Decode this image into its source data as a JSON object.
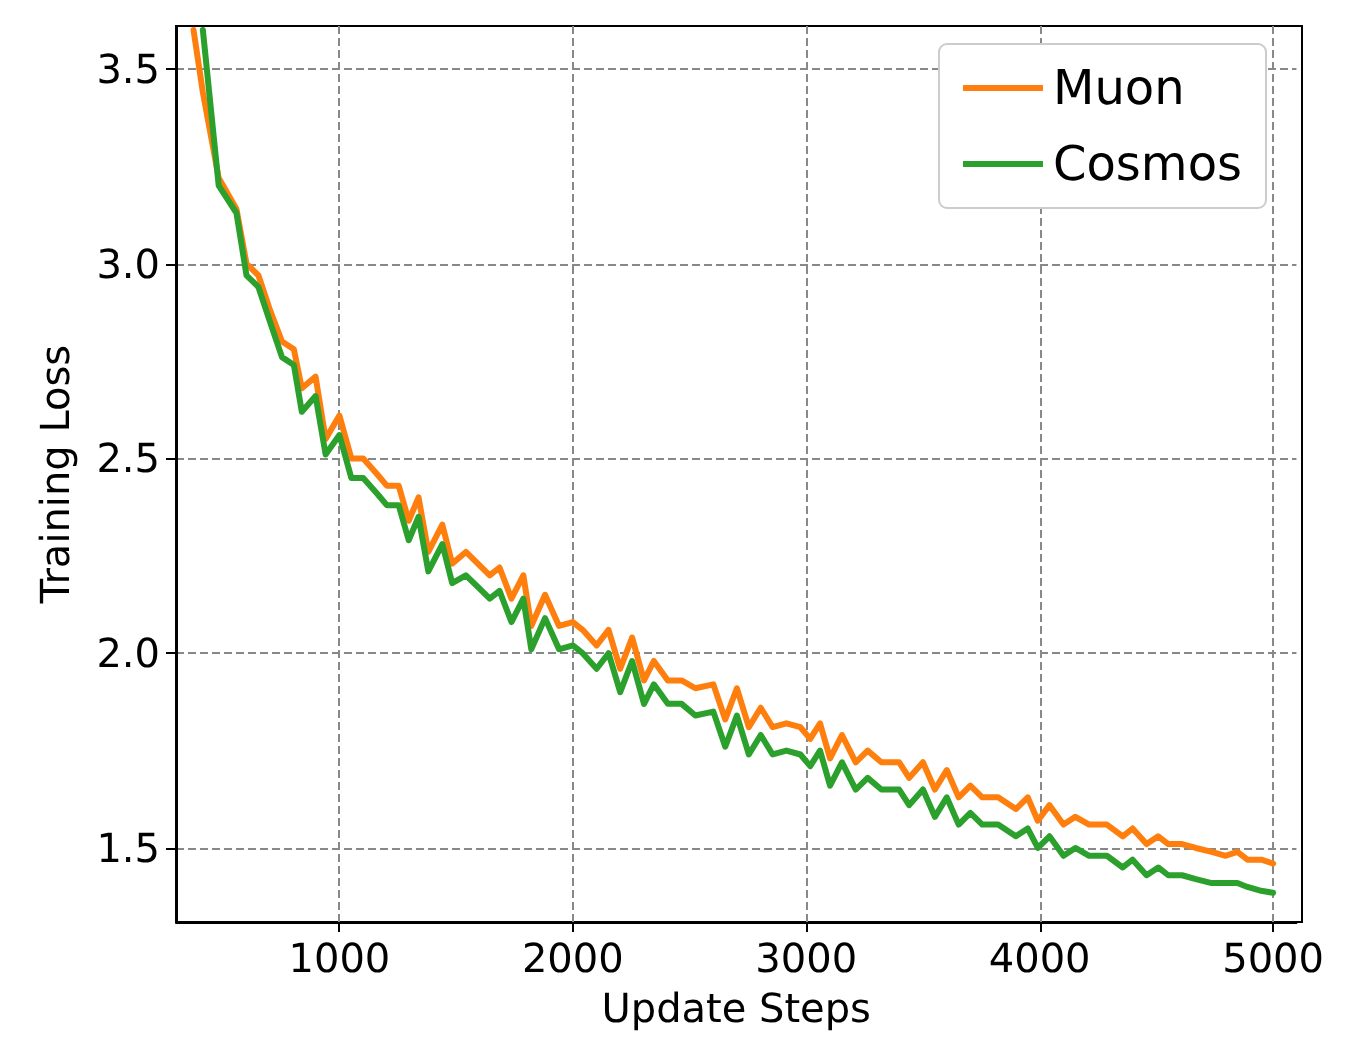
{
  "chart_data": {
    "type": "line",
    "xlabel": "Update Steps",
    "ylabel": "Training Loss",
    "x": [
      375,
      415,
      483,
      559,
      602,
      653,
      703,
      754,
      805,
      839,
      898,
      941,
      1000,
      1051,
      1102,
      1161,
      1203,
      1254,
      1297,
      1339,
      1381,
      1441,
      1483,
      1542,
      1593,
      1644,
      1686,
      1737,
      1788,
      1822,
      1881,
      1941,
      2000,
      2042,
      2102,
      2153,
      2203,
      2254,
      2305,
      2347,
      2407,
      2466,
      2525,
      2602,
      2653,
      2703,
      2754,
      2805,
      2856,
      2915,
      2975,
      3017,
      3059,
      3102,
      3153,
      3212,
      3263,
      3322,
      3398,
      3441,
      3500,
      3551,
      3602,
      3653,
      3703,
      3754,
      3822,
      3898,
      3949,
      3992,
      4042,
      4102,
      4153,
      4212,
      4288,
      4356,
      4398,
      4458,
      4508,
      4551,
      4610,
      4669,
      4737,
      4797,
      4847,
      4890,
      4949,
      5000
    ],
    "series": [
      {
        "name": "Muon",
        "color": "#ff7f0e",
        "values": [
          3.6,
          3.44,
          3.22,
          3.14,
          3.0,
          2.97,
          2.88,
          2.8,
          2.78,
          2.68,
          2.71,
          2.55,
          2.61,
          2.5,
          2.5,
          2.46,
          2.43,
          2.43,
          2.34,
          2.4,
          2.26,
          2.33,
          2.23,
          2.26,
          2.23,
          2.2,
          2.22,
          2.14,
          2.2,
          2.07,
          2.15,
          2.07,
          2.08,
          2.06,
          2.02,
          2.06,
          1.96,
          2.04,
          1.93,
          1.98,
          1.93,
          1.93,
          1.91,
          1.92,
          1.83,
          1.91,
          1.81,
          1.86,
          1.81,
          1.82,
          1.81,
          1.78,
          1.82,
          1.73,
          1.79,
          1.72,
          1.75,
          1.72,
          1.72,
          1.68,
          1.72,
          1.65,
          1.7,
          1.63,
          1.66,
          1.63,
          1.63,
          1.6,
          1.63,
          1.57,
          1.61,
          1.56,
          1.58,
          1.56,
          1.56,
          1.53,
          1.55,
          1.51,
          1.53,
          1.51,
          1.51,
          1.5,
          1.49,
          1.48,
          1.49,
          1.47,
          1.47,
          1.46
        ]
      },
      {
        "name": "Cosmos",
        "color": "#2ca02c",
        "values": [
          null,
          3.6,
          3.2,
          3.13,
          2.97,
          2.94,
          2.85,
          2.76,
          2.74,
          2.62,
          2.66,
          2.51,
          2.56,
          2.45,
          2.45,
          2.41,
          2.38,
          2.38,
          2.29,
          2.35,
          2.21,
          2.28,
          2.18,
          2.2,
          2.17,
          2.14,
          2.16,
          2.08,
          2.14,
          2.01,
          2.09,
          2.01,
          2.02,
          2.0,
          1.96,
          2.0,
          1.9,
          1.98,
          1.87,
          1.92,
          1.87,
          1.87,
          1.84,
          1.85,
          1.76,
          1.84,
          1.74,
          1.79,
          1.74,
          1.75,
          1.74,
          1.71,
          1.75,
          1.66,
          1.72,
          1.65,
          1.68,
          1.65,
          1.65,
          1.61,
          1.65,
          1.58,
          1.63,
          1.56,
          1.59,
          1.56,
          1.56,
          1.53,
          1.55,
          1.5,
          1.53,
          1.48,
          1.5,
          1.48,
          1.48,
          1.45,
          1.47,
          1.43,
          1.45,
          1.43,
          1.43,
          1.42,
          1.41,
          1.41,
          1.41,
          1.4,
          1.39,
          1.385
        ]
      }
    ],
    "xlim": [
      300,
      5100
    ],
    "xticks": [
      1000,
      2000,
      3000,
      4000,
      5000
    ],
    "ylim": [
      1.31,
      3.61
    ],
    "yticks": [
      1.5,
      {
        "value": 2,
        "label": "2.0"
      },
      2.5,
      {
        "value": 3,
        "label": "3.0"
      },
      3.5
    ],
    "grid": true,
    "legend": "top right",
    "line_style": "solid",
    "marker": "none"
  }
}
